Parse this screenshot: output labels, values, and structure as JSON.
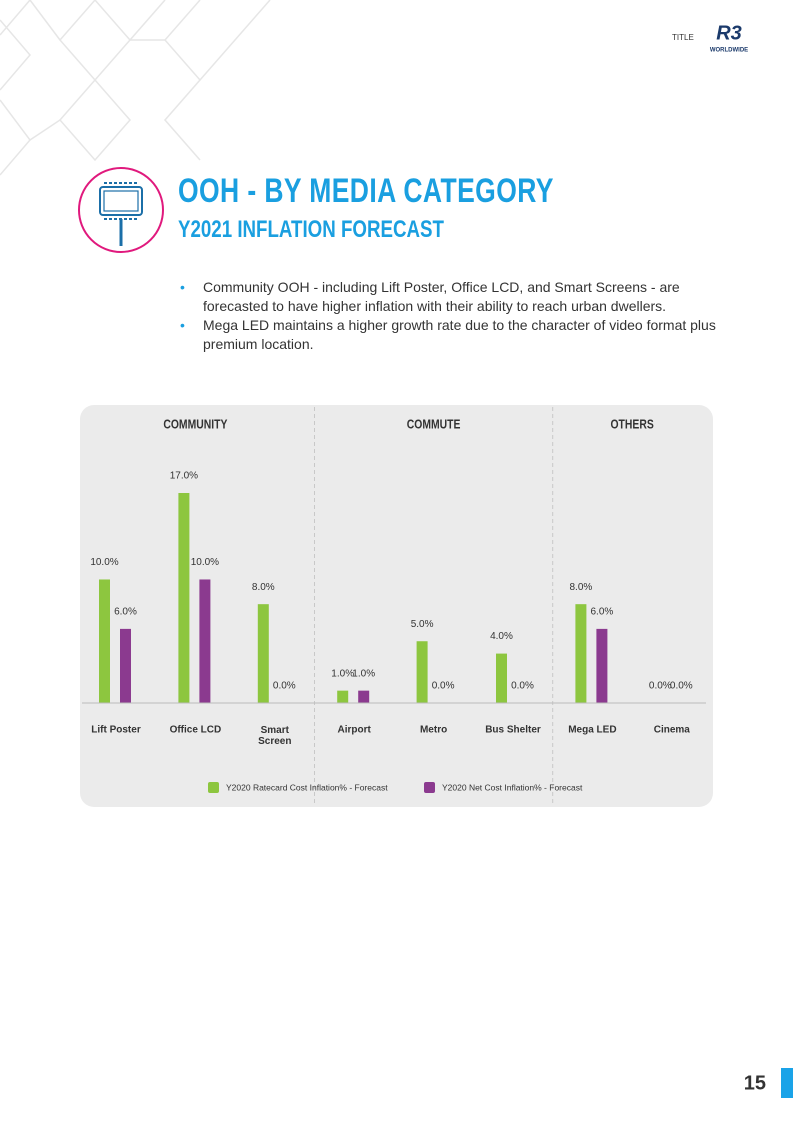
{
  "header": {
    "label": "TITLE",
    "logo": "R3",
    "logo_sub": "WORLDWIDE"
  },
  "title": "OOH - BY MEDIA CATEGORY",
  "subtitle": "Y2021 INFLATION FORECAST",
  "bullets": [
    "Community OOH - including Lift Poster, Office LCD, and Smart Screens - are forecasted to have higher inflation with their ability to reach urban dwellers.",
    "Mega LED maintains a higher growth rate due to the character of video format plus premium location."
  ],
  "chart_data": {
    "type": "bar",
    "groups": [
      {
        "name": "COMMUNITY",
        "categories": [
          "Lift Poster",
          "Office LCD",
          "Smart Screen"
        ]
      },
      {
        "name": "COMMUTE",
        "categories": [
          "Airport",
          "Metro",
          "Bus Shelter"
        ]
      },
      {
        "name": "OTHERS",
        "categories": [
          "Mega LED",
          "Cinema"
        ]
      }
    ],
    "series": [
      {
        "name": "Y2020 Ratecard Cost Inflation% - Forecast",
        "color": "#8dc63f",
        "values": [
          10,
          17,
          8,
          1,
          5,
          4,
          8,
          0
        ],
        "value_labels": [
          "10.0%",
          "17.0%",
          "8.0%",
          "1.0%",
          "5.0%",
          "4.0%",
          "8.0%",
          "0.0%"
        ]
      },
      {
        "name": "Y2020 Net Cost Inflation% - Forecast",
        "color": "#8b3a8f",
        "values": [
          6,
          10,
          0,
          1,
          0,
          0,
          6,
          0
        ],
        "value_labels": [
          "6.0%",
          "10.0%",
          "0.0%",
          "1.0%",
          "0.0%",
          "0.0%",
          "6.0%",
          "0.0%"
        ]
      }
    ]
  },
  "page_number": "15"
}
